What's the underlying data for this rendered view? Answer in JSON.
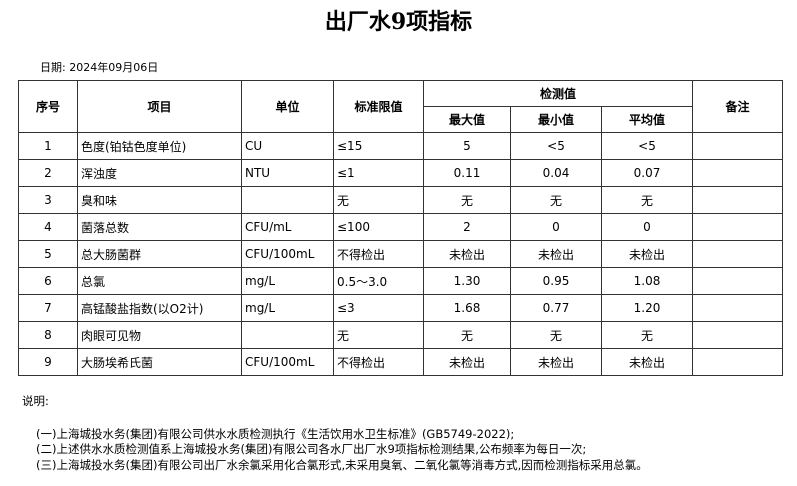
{
  "title": "出厂水9项指标",
  "date": "日期: 2024年09月06日",
  "table": {
    "headers": {
      "no": "序号",
      "item": "项目",
      "unit": "单位",
      "standard": "标准限值",
      "detection": "检测值",
      "max": "最大值",
      "min": "最小值",
      "avg": "平均值",
      "remark": "备注"
    },
    "rows": [
      {
        "no": "1",
        "item": "色度(铂钴色度单位)",
        "unit": "CU",
        "standard": "≤15",
        "max": "5",
        "min": "<5",
        "avg": "<5"
      },
      {
        "no": "2",
        "item": "浑浊度",
        "unit": "NTU",
        "standard": "≤1",
        "max": "0.11",
        "min": "0.04",
        "avg": "0.07"
      },
      {
        "no": "3",
        "item": "臭和味",
        "standard": "无",
        "max": "无",
        "min": "无",
        "avg": "无"
      },
      {
        "no": "4",
        "item": "菌落总数",
        "unit": "CFU/mL",
        "standard": "≤100",
        "max": "2",
        "min": "0",
        "avg": "0"
      },
      {
        "no": "5",
        "item": "总大肠菌群",
        "unit": "CFU/100mL",
        "standard": "不得检出",
        "max": "未检出",
        "min": "未检出",
        "avg": "未检出"
      },
      {
        "no": "6",
        "item": "总氯",
        "unit": "mg/L",
        "standard": "0.5～3.0",
        "max": "1.30",
        "min": "0.95",
        "avg": "1.08"
      },
      {
        "no": "7",
        "item": "高锰酸盐指数(以O2计)",
        "unit": "mg/L",
        "standard": "≤3",
        "max": "1.68",
        "min": "0.77",
        "avg": "1.20"
      },
      {
        "no": "8",
        "item": "肉眼可见物",
        "standard": "无",
        "max": "无",
        "min": "无",
        "avg": "无"
      },
      {
        "no": "9",
        "item": "大肠埃希氏菌",
        "unit": "CFU/100mL",
        "standard": "不得检出",
        "max": "未检出",
        "min": "未检出",
        "avg": "未检出"
      }
    ]
  },
  "notes": {
    "heading": "说明:",
    "lines": [
      "(一)上海城投水务(集团)有限公司供水水质检测执行《生活饮用水卫生标准》(GB5749-2022);",
      "(二)上述供水水质检测值系上海城投水务(集团)有限公司各水厂出厂水9项指标检测结果,公布频率为每日一次;",
      "(三)上海城投水务(集团)有限公司出厂水余氯采用化合氯形式,未采用臭氧、二氧化氯等消毒方式,因而检测指标采用总氯。"
    ]
  }
}
